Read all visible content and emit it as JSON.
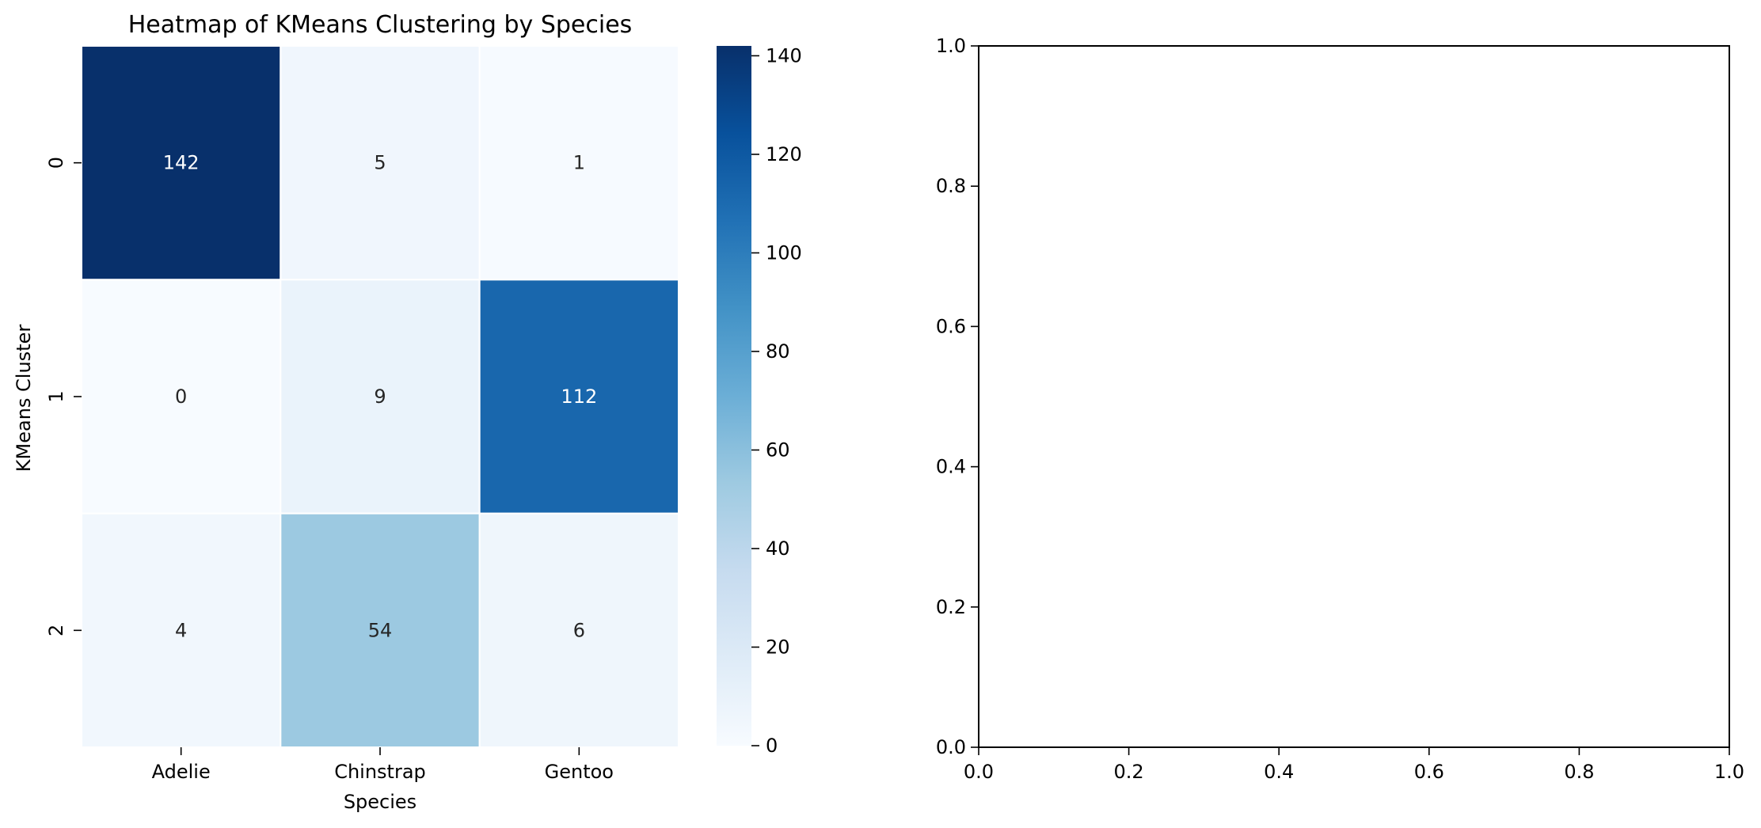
{
  "chart_data": [
    {
      "type": "heatmap",
      "title": "Heatmap of KMeans Clustering by Species",
      "xlabel": "Species",
      "ylabel": "KMeans Cluster",
      "x_categories": [
        "Adelie",
        "Chinstrap",
        "Gentoo"
      ],
      "y_categories": [
        "0",
        "1",
        "2"
      ],
      "values": [
        [
          142,
          5,
          1
        ],
        [
          0,
          9,
          112
        ],
        [
          4,
          54,
          6
        ]
      ],
      "colormap": "Blues",
      "colorbar": {
        "range": [
          0,
          142
        ],
        "ticks": [
          0,
          20,
          40,
          60,
          80,
          100,
          120,
          140
        ]
      },
      "annotations": true
    },
    {
      "type": "scatter",
      "title": "",
      "xlabel": "",
      "ylabel": "",
      "xlim": [
        0,
        1
      ],
      "ylim": [
        0,
        1
      ],
      "x_ticks": [
        "0.0",
        "0.2",
        "0.4",
        "0.6",
        "0.8",
        "1.0"
      ],
      "y_ticks": [
        "0.0",
        "0.2",
        "0.4",
        "0.6",
        "0.8",
        "1.0"
      ],
      "series": []
    }
  ]
}
